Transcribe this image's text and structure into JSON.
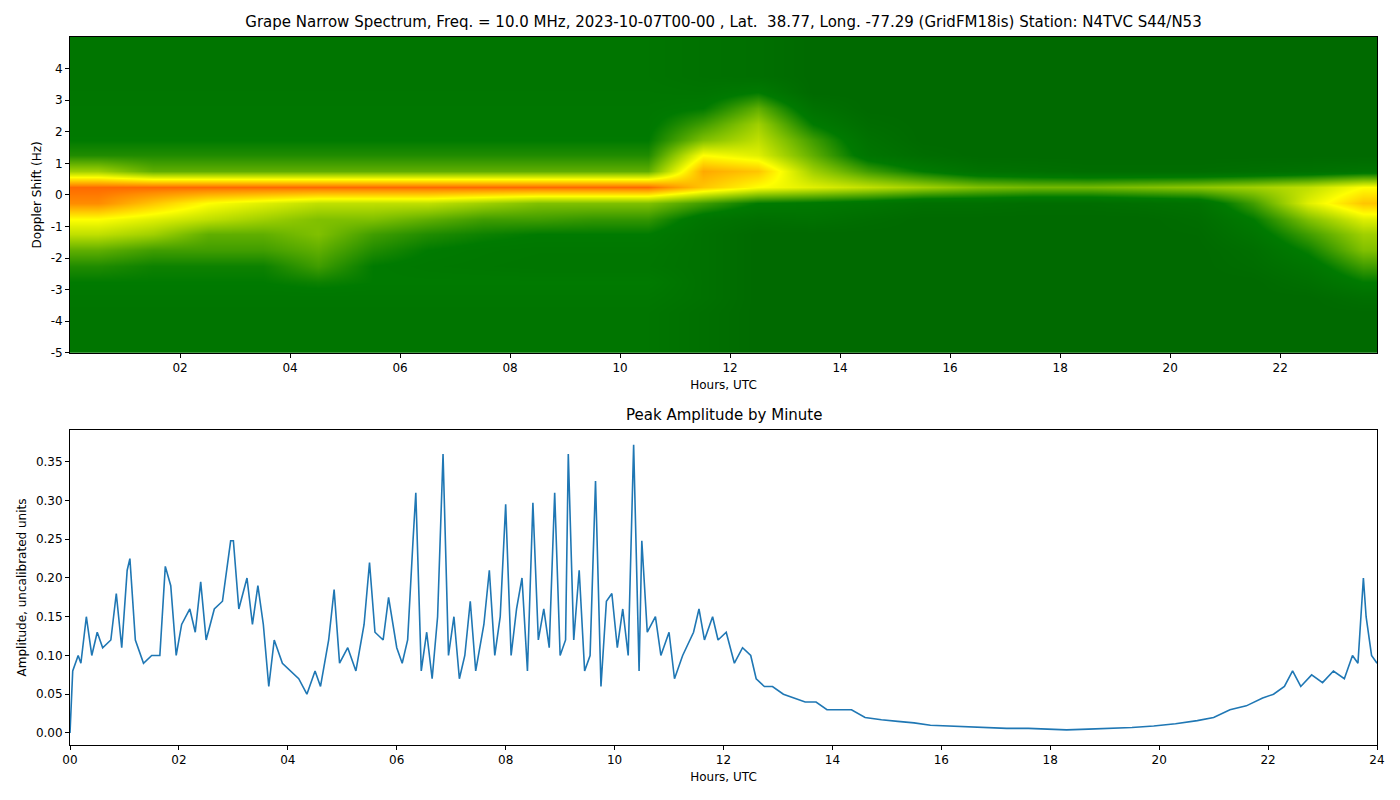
{
  "chart_data": [
    {
      "type": "heatmap",
      "title": "Grape Narrow Spectrum, Freq. = 10.0 MHz, 2023-10-07T00-00 , Lat.  38.77, Long. -77.29 (GridFM18is) Station: N4TVC S44/N53",
      "x_label": "Hours, UTC",
      "y_label": "Doppler Shift (Hz)",
      "xlim": [
        0,
        23.76
      ],
      "ylim": [
        -5,
        5
      ],
      "xticks": [
        {
          "value": 2,
          "label": "02"
        },
        {
          "value": 4,
          "label": "04"
        },
        {
          "value": 6,
          "label": "06"
        },
        {
          "value": 8,
          "label": "08"
        },
        10,
        12,
        14,
        16,
        18,
        20,
        22
      ],
      "yticks": [
        -5,
        -4,
        -3,
        -2,
        -1,
        0,
        1,
        2,
        3,
        4
      ],
      "colors": [
        "#006400",
        "#007a00",
        "#80c000",
        "#ffff00",
        "#ff8c00",
        "#ff0000"
      ],
      "zlim": [
        0,
        1
      ],
      "x": [
        0.5,
        1.5,
        2.5,
        3.5,
        4.5,
        5.5,
        6.5,
        7.5,
        8.5,
        9.5,
        10.5,
        11.5,
        12.5,
        13.5,
        14.5,
        15.5,
        16.5,
        17.5,
        18.5,
        19.5,
        20.5,
        21.5,
        22.5,
        23.5
      ],
      "y": [
        -4.75,
        -4.25,
        -3.75,
        -3.25,
        -2.75,
        -2.25,
        -1.75,
        -1.25,
        -0.75,
        -0.25,
        0.25,
        0.75,
        1.25,
        1.75,
        2.25,
        2.75,
        3.25,
        3.75,
        4.25,
        4.75
      ],
      "z": [
        [
          0.15,
          0.15,
          0.15,
          0.15,
          0.15,
          0.15,
          0.15,
          0.15,
          0.15,
          0.15,
          0.15,
          0.1,
          0.05,
          0.05,
          0.05,
          0.05,
          0.05,
          0.05,
          0.05,
          0.05,
          0.05,
          0.05,
          0.05,
          0.05
        ],
        [
          0.15,
          0.15,
          0.15,
          0.15,
          0.15,
          0.15,
          0.15,
          0.15,
          0.15,
          0.15,
          0.15,
          0.1,
          0.05,
          0.05,
          0.05,
          0.05,
          0.05,
          0.05,
          0.05,
          0.05,
          0.05,
          0.05,
          0.05,
          0.05
        ],
        [
          0.15,
          0.15,
          0.15,
          0.15,
          0.15,
          0.15,
          0.15,
          0.15,
          0.15,
          0.15,
          0.15,
          0.1,
          0.05,
          0.05,
          0.05,
          0.05,
          0.05,
          0.05,
          0.05,
          0.05,
          0.05,
          0.05,
          0.05,
          0.05
        ],
        [
          0.17,
          0.17,
          0.17,
          0.17,
          0.17,
          0.17,
          0.17,
          0.17,
          0.17,
          0.17,
          0.17,
          0.12,
          0.05,
          0.05,
          0.05,
          0.05,
          0.05,
          0.05,
          0.05,
          0.05,
          0.05,
          0.05,
          0.05,
          0.1
        ],
        [
          0.2,
          0.2,
          0.2,
          0.2,
          0.22,
          0.2,
          0.2,
          0.2,
          0.2,
          0.2,
          0.2,
          0.12,
          0.05,
          0.05,
          0.05,
          0.05,
          0.05,
          0.05,
          0.05,
          0.05,
          0.05,
          0.05,
          0.1,
          0.2
        ],
        [
          0.25,
          0.22,
          0.22,
          0.22,
          0.3,
          0.2,
          0.18,
          0.17,
          0.16,
          0.16,
          0.16,
          0.12,
          0.05,
          0.05,
          0.05,
          0.05,
          0.05,
          0.05,
          0.05,
          0.05,
          0.05,
          0.08,
          0.15,
          0.3
        ],
        [
          0.35,
          0.3,
          0.3,
          0.3,
          0.35,
          0.25,
          0.2,
          0.18,
          0.17,
          0.17,
          0.17,
          0.12,
          0.05,
          0.05,
          0.05,
          0.05,
          0.05,
          0.05,
          0.05,
          0.05,
          0.05,
          0.1,
          0.22,
          0.4
        ],
        [
          0.5,
          0.45,
          0.35,
          0.35,
          0.4,
          0.3,
          0.25,
          0.22,
          0.2,
          0.2,
          0.2,
          0.12,
          0.05,
          0.05,
          0.05,
          0.05,
          0.05,
          0.05,
          0.05,
          0.05,
          0.06,
          0.15,
          0.3,
          0.45
        ],
        [
          0.6,
          0.55,
          0.5,
          0.45,
          0.4,
          0.4,
          0.35,
          0.3,
          0.3,
          0.28,
          0.28,
          0.15,
          0.1,
          0.12,
          0.08,
          0.05,
          0.05,
          0.05,
          0.05,
          0.05,
          0.08,
          0.2,
          0.4,
          0.55
        ],
        [
          0.8,
          0.7,
          0.6,
          0.55,
          0.5,
          0.5,
          0.5,
          0.45,
          0.4,
          0.4,
          0.4,
          0.3,
          0.2,
          0.18,
          0.15,
          0.1,
          0.1,
          0.08,
          0.08,
          0.1,
          0.12,
          0.3,
          0.55,
          0.7
        ],
        [
          0.85,
          0.85,
          0.85,
          0.85,
          0.85,
          0.85,
          0.85,
          0.85,
          0.85,
          0.85,
          0.85,
          0.7,
          0.6,
          0.55,
          0.5,
          0.45,
          0.4,
          0.38,
          0.38,
          0.4,
          0.42,
          0.45,
          0.5,
          0.6
        ],
        [
          0.45,
          0.35,
          0.35,
          0.35,
          0.35,
          0.35,
          0.35,
          0.35,
          0.35,
          0.35,
          0.35,
          0.75,
          0.7,
          0.45,
          0.3,
          0.2,
          0.12,
          0.1,
          0.08,
          0.08,
          0.08,
          0.1,
          0.12,
          0.15
        ],
        [
          0.25,
          0.25,
          0.25,
          0.25,
          0.25,
          0.25,
          0.25,
          0.25,
          0.25,
          0.25,
          0.25,
          0.6,
          0.55,
          0.35,
          0.15,
          0.08,
          0.05,
          0.05,
          0.05,
          0.05,
          0.05,
          0.05,
          0.05,
          0.05
        ],
        [
          0.2,
          0.2,
          0.2,
          0.2,
          0.2,
          0.2,
          0.2,
          0.2,
          0.2,
          0.2,
          0.2,
          0.4,
          0.5,
          0.3,
          0.12,
          0.05,
          0.05,
          0.05,
          0.05,
          0.05,
          0.05,
          0.05,
          0.05,
          0.05
        ],
        [
          0.18,
          0.18,
          0.18,
          0.18,
          0.18,
          0.18,
          0.18,
          0.18,
          0.18,
          0.18,
          0.18,
          0.3,
          0.45,
          0.2,
          0.08,
          0.05,
          0.05,
          0.05,
          0.05,
          0.05,
          0.05,
          0.05,
          0.05,
          0.05
        ],
        [
          0.17,
          0.17,
          0.17,
          0.17,
          0.17,
          0.17,
          0.17,
          0.17,
          0.17,
          0.17,
          0.17,
          0.2,
          0.35,
          0.12,
          0.05,
          0.05,
          0.05,
          0.05,
          0.05,
          0.05,
          0.05,
          0.05,
          0.05,
          0.05
        ],
        [
          0.16,
          0.16,
          0.16,
          0.16,
          0.16,
          0.16,
          0.16,
          0.16,
          0.16,
          0.16,
          0.16,
          0.15,
          0.2,
          0.05,
          0.05,
          0.05,
          0.05,
          0.05,
          0.05,
          0.05,
          0.05,
          0.05,
          0.05,
          0.05
        ],
        [
          0.15,
          0.15,
          0.15,
          0.15,
          0.15,
          0.15,
          0.15,
          0.15,
          0.15,
          0.15,
          0.15,
          0.12,
          0.1,
          0.05,
          0.05,
          0.05,
          0.05,
          0.05,
          0.05,
          0.05,
          0.05,
          0.05,
          0.05,
          0.05
        ],
        [
          0.15,
          0.15,
          0.15,
          0.15,
          0.15,
          0.15,
          0.15,
          0.15,
          0.15,
          0.15,
          0.15,
          0.12,
          0.1,
          0.05,
          0.05,
          0.05,
          0.05,
          0.05,
          0.05,
          0.05,
          0.05,
          0.05,
          0.05,
          0.05
        ],
        [
          0.15,
          0.15,
          0.15,
          0.15,
          0.15,
          0.15,
          0.15,
          0.15,
          0.15,
          0.15,
          0.15,
          0.12,
          0.1,
          0.05,
          0.05,
          0.05,
          0.05,
          0.05,
          0.05,
          0.05,
          0.05,
          0.05,
          0.05,
          0.05
        ]
      ]
    },
    {
      "type": "line",
      "title": "Peak Amplitude by Minute",
      "x_label": "Hours, UTC",
      "y_label": "Amplitude, uncalibrated units",
      "color": "#1f77b4",
      "xlim": [
        0,
        24
      ],
      "ylim": [
        -0.0155,
        0.391
      ],
      "xticks": [
        {
          "value": 0,
          "label": "00"
        },
        {
          "value": 2,
          "label": "02"
        },
        {
          "value": 4,
          "label": "04"
        },
        {
          "value": 6,
          "label": "06"
        },
        {
          "value": 8,
          "label": "08"
        },
        10,
        12,
        14,
        16,
        18,
        20,
        22,
        24
      ],
      "yticks": [
        {
          "value": 0,
          "label": "0.00"
        },
        0.05,
        {
          "value": 0.1,
          "label": "0.10"
        },
        0.15,
        {
          "value": 0.2,
          "label": "0.20"
        },
        0.25,
        {
          "value": 0.3,
          "label": "0.30"
        },
        0.35
      ],
      "x": [
        0.0,
        0.05,
        0.15,
        0.2,
        0.3,
        0.4,
        0.5,
        0.6,
        0.75,
        0.85,
        0.95,
        1.05,
        1.1,
        1.2,
        1.35,
        1.5,
        1.65,
        1.75,
        1.85,
        1.95,
        2.05,
        2.2,
        2.3,
        2.4,
        2.5,
        2.65,
        2.8,
        2.95,
        3.0,
        3.1,
        3.25,
        3.35,
        3.45,
        3.55,
        3.65,
        3.75,
        3.9,
        4.05,
        4.2,
        4.35,
        4.5,
        4.6,
        4.75,
        4.85,
        4.95,
        5.1,
        5.25,
        5.4,
        5.5,
        5.6,
        5.75,
        5.85,
        6.0,
        6.1,
        6.2,
        6.3,
        6.35,
        6.45,
        6.55,
        6.65,
        6.75,
        6.85,
        6.95,
        7.05,
        7.15,
        7.25,
        7.35,
        7.45,
        7.6,
        7.7,
        7.8,
        7.9,
        8.0,
        8.1,
        8.2,
        8.3,
        8.4,
        8.5,
        8.6,
        8.7,
        8.8,
        8.9,
        9.0,
        9.1,
        9.15,
        9.25,
        9.35,
        9.45,
        9.55,
        9.65,
        9.75,
        9.85,
        9.95,
        10.05,
        10.15,
        10.25,
        10.35,
        10.45,
        10.5,
        10.6,
        10.75,
        10.85,
        11.0,
        11.1,
        11.25,
        11.45,
        11.55,
        11.65,
        11.8,
        11.9,
        12.05,
        12.2,
        12.35,
        12.5,
        12.6,
        12.75,
        12.9,
        13.1,
        13.3,
        13.5,
        13.7,
        13.9,
        14.1,
        14.35,
        14.6,
        14.9,
        15.2,
        15.5,
        15.8,
        16.1,
        16.4,
        16.8,
        17.2,
        17.6,
        18.0,
        18.3,
        18.7,
        19.1,
        19.5,
        19.9,
        20.3,
        20.7,
        21.0,
        21.3,
        21.6,
        21.9,
        22.1,
        22.3,
        22.45,
        22.6,
        22.8,
        23.0,
        23.2,
        23.4,
        23.55,
        23.65,
        23.75,
        23.8,
        23.9,
        24.0
      ],
      "values": [
        0.0,
        0.08,
        0.1,
        0.09,
        0.15,
        0.1,
        0.13,
        0.11,
        0.12,
        0.18,
        0.11,
        0.21,
        0.225,
        0.12,
        0.09,
        0.1,
        0.1,
        0.215,
        0.19,
        0.1,
        0.14,
        0.16,
        0.13,
        0.195,
        0.12,
        0.16,
        0.17,
        0.248,
        0.248,
        0.16,
        0.2,
        0.14,
        0.19,
        0.14,
        0.06,
        0.12,
        0.09,
        0.08,
        0.07,
        0.05,
        0.08,
        0.06,
        0.12,
        0.185,
        0.09,
        0.11,
        0.08,
        0.14,
        0.22,
        0.13,
        0.12,
        0.175,
        0.11,
        0.09,
        0.12,
        0.25,
        0.31,
        0.08,
        0.13,
        0.07,
        0.15,
        0.36,
        0.1,
        0.15,
        0.07,
        0.1,
        0.17,
        0.08,
        0.14,
        0.21,
        0.1,
        0.15,
        0.295,
        0.1,
        0.16,
        0.2,
        0.08,
        0.297,
        0.12,
        0.16,
        0.11,
        0.31,
        0.1,
        0.12,
        0.36,
        0.12,
        0.21,
        0.08,
        0.1,
        0.325,
        0.06,
        0.17,
        0.18,
        0.11,
        0.16,
        0.1,
        0.372,
        0.08,
        0.248,
        0.13,
        0.15,
        0.1,
        0.13,
        0.07,
        0.1,
        0.13,
        0.16,
        0.12,
        0.15,
        0.12,
        0.13,
        0.09,
        0.11,
        0.1,
        0.07,
        0.06,
        0.06,
        0.05,
        0.045,
        0.04,
        0.04,
        0.03,
        0.03,
        0.03,
        0.02,
        0.017,
        0.015,
        0.013,
        0.01,
        0.009,
        0.008,
        0.007,
        0.006,
        0.006,
        0.005,
        0.004,
        0.005,
        0.006,
        0.007,
        0.009,
        0.012,
        0.016,
        0.02,
        0.03,
        0.035,
        0.045,
        0.05,
        0.06,
        0.08,
        0.06,
        0.075,
        0.065,
        0.08,
        0.07,
        0.1,
        0.09,
        0.2,
        0.15,
        0.1,
        0.09
      ]
    }
  ]
}
